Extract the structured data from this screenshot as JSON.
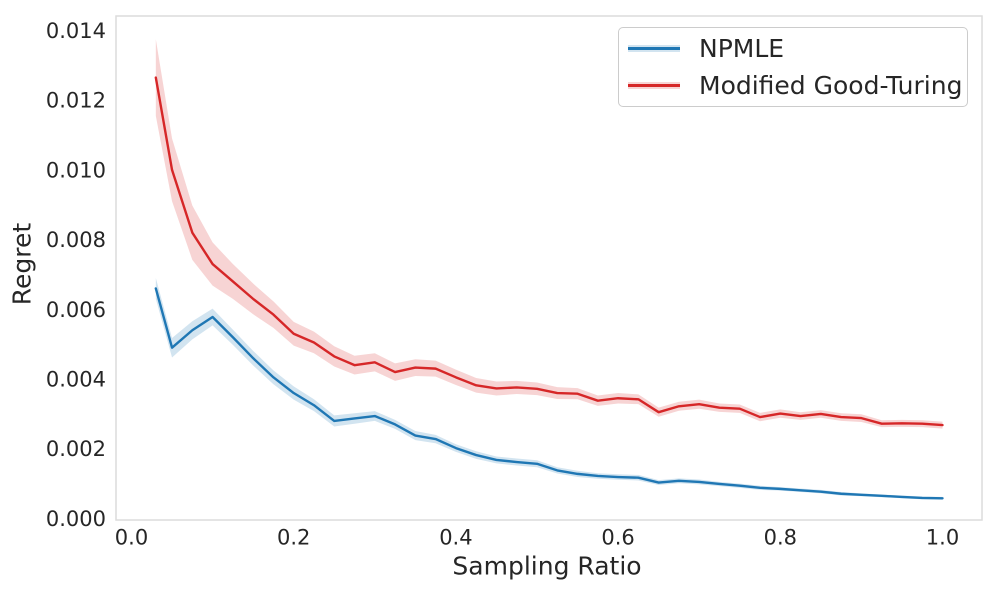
{
  "chart_data": {
    "type": "line",
    "title": "",
    "xlabel": "Sampling Ratio",
    "ylabel": "Regret",
    "grid": false,
    "legend_position": "upper right",
    "xlim": [
      -0.0191,
      1.0487
    ],
    "ylim": [
      -4.3e-05,
      0.014416
    ],
    "xtick_values": [
      0.0,
      0.2,
      0.4,
      0.6,
      0.8,
      1.0
    ],
    "xtick_labels": [
      "0.0",
      "0.2",
      "0.4",
      "0.6",
      "0.8",
      "1.0"
    ],
    "ytick_values": [
      0.0,
      0.002,
      0.004,
      0.006,
      0.008,
      0.01,
      0.012,
      0.014
    ],
    "ytick_labels": [
      "0.000",
      "0.002",
      "0.004",
      "0.006",
      "0.008",
      "0.010",
      "0.012",
      "0.014"
    ],
    "x": [
      0.03,
      0.05,
      0.075,
      0.1,
      0.125,
      0.15,
      0.175,
      0.2,
      0.225,
      0.25,
      0.275,
      0.3,
      0.325,
      0.35,
      0.375,
      0.4,
      0.425,
      0.45,
      0.475,
      0.5,
      0.525,
      0.55,
      0.575,
      0.6,
      0.625,
      0.65,
      0.675,
      0.7,
      0.725,
      0.75,
      0.775,
      0.8,
      0.825,
      0.85,
      0.875,
      0.9,
      0.925,
      0.95,
      0.975,
      1.0
    ],
    "series": [
      {
        "name": "NPMLE",
        "color": "#1f77b4",
        "values": [
          0.0066,
          0.0049,
          0.0054,
          0.00578,
          0.0052,
          0.0046,
          0.00405,
          0.0036,
          0.00325,
          0.0028,
          0.00287,
          0.00294,
          0.0027,
          0.00238,
          0.00228,
          0.00202,
          0.00182,
          0.00168,
          0.00162,
          0.00157,
          0.00138,
          0.00128,
          0.00122,
          0.00119,
          0.00117,
          0.00103,
          0.00108,
          0.00105,
          0.00099,
          0.00094,
          0.00088,
          0.00085,
          0.00081,
          0.00077,
          0.00071,
          0.00068,
          0.00065,
          0.00062,
          0.00059,
          0.00058
        ],
        "ci": [
          0.0003,
          0.00028,
          0.00026,
          0.00024,
          0.00022,
          0.00021,
          0.0002,
          0.00019,
          0.00017,
          0.00016,
          0.00015,
          0.00014,
          0.00013,
          0.00013,
          0.00012,
          0.00011,
          0.00011,
          0.0001,
          0.0001,
          0.0001,
          9e-05,
          9e-05,
          8e-05,
          8e-05,
          8e-05,
          7e-05,
          7e-05,
          7e-05,
          6e-05,
          6e-05,
          6e-05,
          5e-05,
          5e-05,
          5e-05,
          5e-05,
          4e-05,
          4e-05,
          4e-05,
          4e-05,
          4e-05
        ]
      },
      {
        "name": "Modified Good-Turing",
        "color": "#d62728",
        "values": [
          0.01265,
          0.01,
          0.0082,
          0.0073,
          0.0068,
          0.0063,
          0.00585,
          0.0053,
          0.00505,
          0.00465,
          0.0044,
          0.00448,
          0.0042,
          0.00433,
          0.0043,
          0.00405,
          0.00382,
          0.00373,
          0.00376,
          0.00372,
          0.0036,
          0.00358,
          0.00338,
          0.00345,
          0.00342,
          0.00305,
          0.00322,
          0.00328,
          0.00318,
          0.00315,
          0.00291,
          0.00301,
          0.00294,
          0.003,
          0.00291,
          0.00288,
          0.00272,
          0.00273,
          0.00272,
          0.00268
        ],
        "ci": [
          0.0011,
          0.0009,
          0.00078,
          0.00062,
          0.0005,
          0.00044,
          0.00038,
          0.00034,
          0.00031,
          0.00029,
          0.00027,
          0.00026,
          0.00025,
          0.00024,
          0.00023,
          0.00022,
          0.00021,
          0.0002,
          0.00019,
          0.00018,
          0.00017,
          0.00016,
          0.00015,
          0.00015,
          0.00014,
          0.00013,
          0.00013,
          0.00013,
          0.00012,
          0.00012,
          0.00012,
          0.00012,
          0.00011,
          0.00011,
          0.00011,
          0.00011,
          0.0001,
          0.0001,
          0.0001,
          0.0001
        ]
      }
    ],
    "style": {
      "spine_color": "#dcdcdc",
      "text_color": "#262626",
      "band_alpha": 0.2,
      "background": "#ffffff"
    }
  }
}
